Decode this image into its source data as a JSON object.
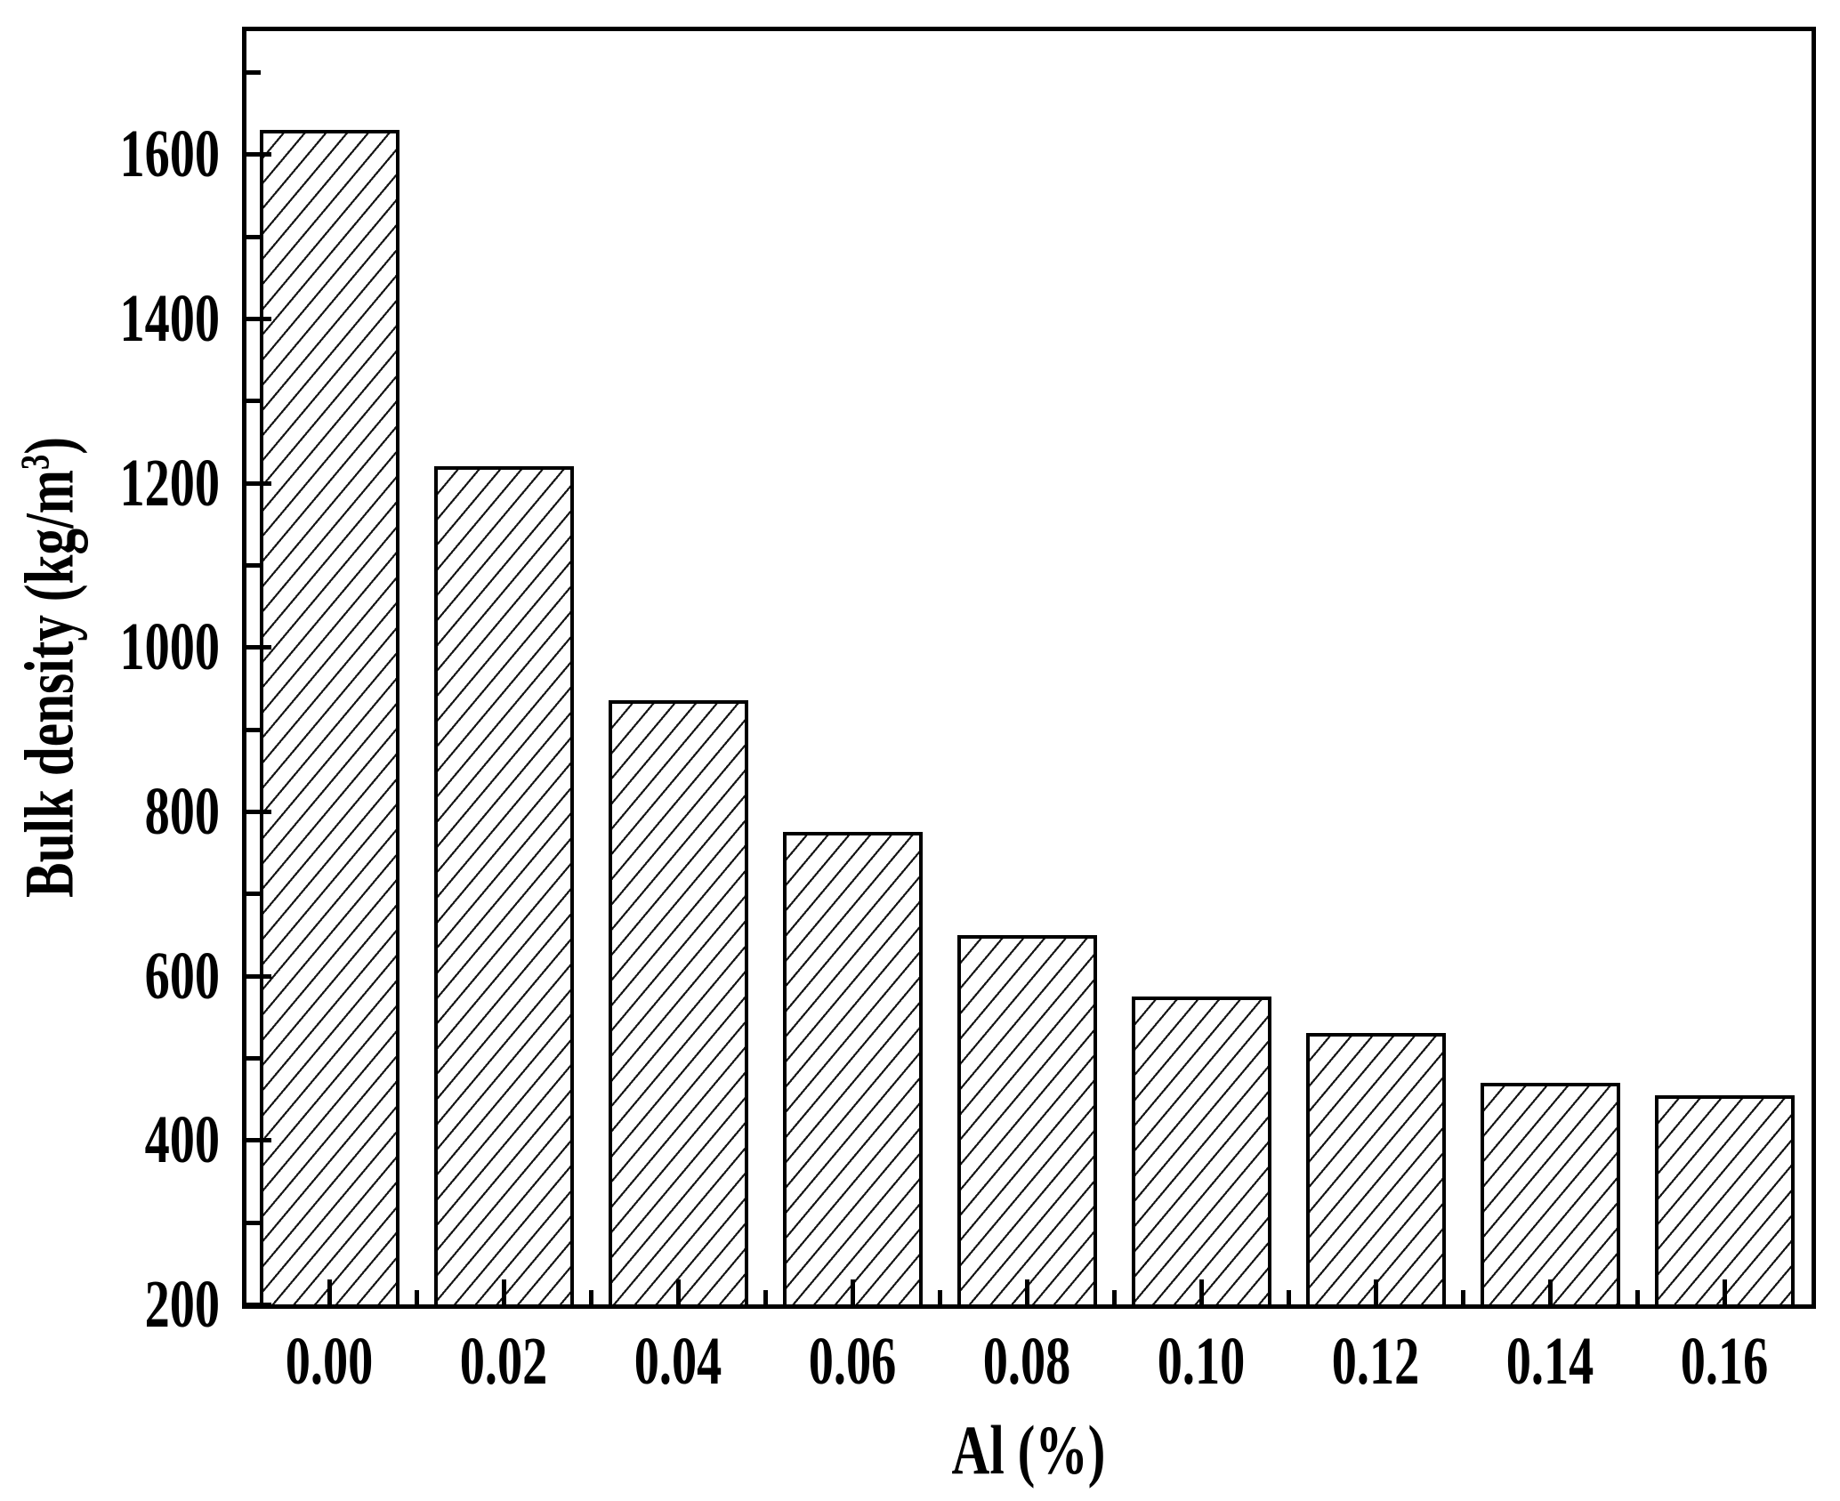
{
  "figure": {
    "background_color": "#ffffff",
    "ink_color": "#000000"
  },
  "chart_data": {
    "type": "bar",
    "title": "",
    "xlabel": "Al (%)",
    "ylabel_prefix": "Bulk density (kg/m",
    "ylabel_sup": "3",
    "ylabel_suffix": ")",
    "categories": [
      "0.00",
      "0.02",
      "0.04",
      "0.06",
      "0.08",
      "0.10",
      "0.12",
      "0.14",
      "0.16"
    ],
    "values": [
      1630,
      1220,
      935,
      775,
      650,
      575,
      530,
      470,
      455
    ],
    "ylim": [
      200,
      1750
    ],
    "y_major_ticks": [
      {
        "value": 200,
        "label": "200"
      },
      {
        "value": 400,
        "label": "400"
      },
      {
        "value": 600,
        "label": "600"
      },
      {
        "value": 800,
        "label": "800"
      },
      {
        "value": 1000,
        "label": "1000"
      },
      {
        "value": 1200,
        "label": "1200"
      },
      {
        "value": 1400,
        "label": "1400"
      },
      {
        "value": 1600,
        "label": "1600"
      }
    ],
    "y_minor_ticks": [
      300,
      500,
      700,
      900,
      1100,
      1300,
      1500,
      1700
    ],
    "grid": "off",
    "legend": "none",
    "bar_fill": "diagonal-hatch",
    "bar_edge_color": "#000000"
  }
}
